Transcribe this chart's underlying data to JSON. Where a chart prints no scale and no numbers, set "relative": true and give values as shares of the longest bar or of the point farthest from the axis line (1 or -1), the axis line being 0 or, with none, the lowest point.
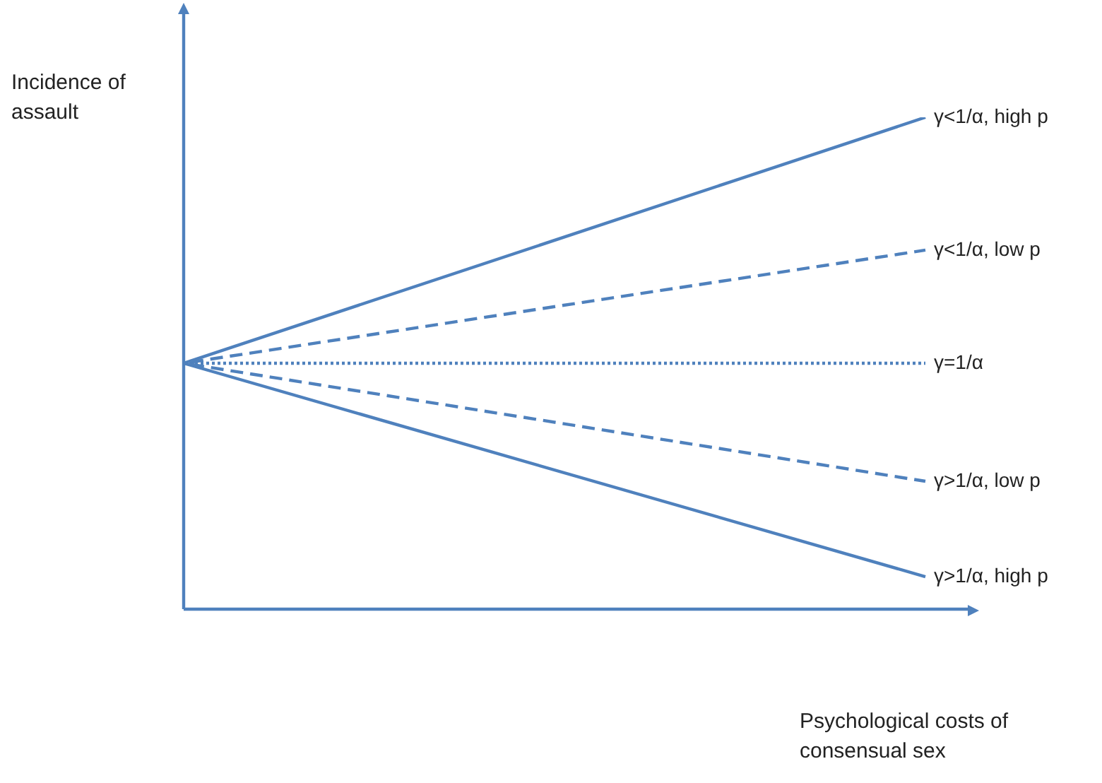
{
  "chart_data": {
    "type": "line",
    "relative": true,
    "xlabel": "Psychological costs of consensual sex",
    "ylabel": "Incidence of assault",
    "categories": [
      null,
      null
    ],
    "legend": false,
    "marker": "none",
    "series": [
      {
        "name": "γ<1/α, high p",
        "color": "#4f81bd",
        "line_style": "solid",
        "values": [
          0.5,
          1
        ]
      },
      {
        "name": "γ<1/α, low p",
        "color": "#4f81bd",
        "line_style": "dashed",
        "values": [
          0.5,
          0.73
        ]
      },
      {
        "name": "γ=1/α",
        "color": "#4f81bd",
        "line_style": "dotted",
        "values": [
          0.5,
          0.5
        ]
      },
      {
        "name": "γ>1/α, low p",
        "color": "#4f81bd",
        "line_style": "dashed",
        "values": [
          0.5,
          0.26
        ]
      },
      {
        "name": "γ>1/α, high p",
        "color": "#4f81bd",
        "line_style": "solid",
        "values": [
          0.5,
          0.066
        ]
      }
    ]
  }
}
